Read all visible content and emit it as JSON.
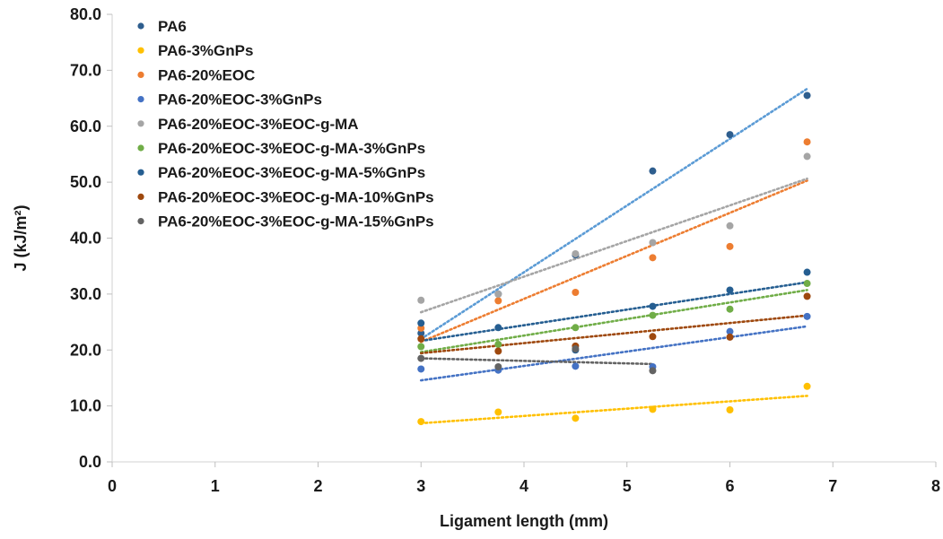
{
  "chart_data": {
    "type": "scatter",
    "xlabel": "Ligament length (mm)",
    "ylabel": "J (kJ/m²)",
    "xlim": [
      0,
      8
    ],
    "ylim": [
      0,
      80
    ],
    "x_ticks": [
      "0",
      "1",
      "2",
      "3",
      "4",
      "5",
      "6",
      "7",
      "8"
    ],
    "y_ticks": [
      "0.0",
      "10.0",
      "20.0",
      "30.0",
      "40.0",
      "50.0",
      "60.0",
      "70.0",
      "80.0"
    ],
    "grid": false,
    "legend_position": "top-left",
    "trendlines": "linear, dotted",
    "series": [
      {
        "name": "PA6",
        "color": "#2E5E8E",
        "trend_color": "#5B9BD5",
        "x": [
          3,
          3.75,
          4.5,
          5.25,
          6,
          6.75
        ],
        "y": [
          23.0,
          30.0,
          37.0,
          52.0,
          58.5,
          65.5
        ]
      },
      {
        "name": "PA6-3%GnPs",
        "color": "#FFC000",
        "trend_color": "#FFC000",
        "x": [
          3,
          3.75,
          4.5,
          5.25,
          6,
          6.75
        ],
        "y": [
          7.2,
          8.9,
          7.8,
          9.4,
          9.3,
          13.5
        ]
      },
      {
        "name": "PA6-20%EOC",
        "color": "#ED7D31",
        "trend_color": "#ED7D31",
        "x": [
          3,
          3.75,
          4.5,
          5.25,
          6,
          6.75
        ],
        "y": [
          23.9,
          28.8,
          30.3,
          36.5,
          38.5,
          57.2
        ]
      },
      {
        "name": "PA6-20%EOC-3%GnPs",
        "color": "#4472C4",
        "trend_color": "#4472C4",
        "x": [
          3,
          3.75,
          4.5,
          5.25,
          6,
          6.75
        ],
        "y": [
          16.6,
          16.4,
          17.1,
          17.0,
          23.3,
          26.0
        ]
      },
      {
        "name": "PA6-20%EOC-3%EOC-g-MA",
        "color": "#A5A5A5",
        "trend_color": "#A5A5A5",
        "x": [
          3,
          3.75,
          4.5,
          5.25,
          6,
          6.75
        ],
        "y": [
          28.9,
          30.0,
          37.2,
          39.2,
          42.2,
          54.6
        ]
      },
      {
        "name": "PA6-20%EOC-3%EOC-g-MA-3%GnPs",
        "color": "#70AD47",
        "trend_color": "#70AD47",
        "x": [
          3,
          3.75,
          4.5,
          5.25,
          6,
          6.75
        ],
        "y": [
          20.6,
          21.0,
          24.0,
          26.2,
          27.3,
          31.9
        ]
      },
      {
        "name": "PA6-20%EOC-3%EOC-g-MA-5%GnPs",
        "color": "#255E91",
        "trend_color": "#255E91",
        "x": [
          3,
          3.75,
          4.5,
          5.25,
          6,
          6.75
        ],
        "y": [
          24.8,
          24.0,
          20.0,
          27.8,
          30.7,
          33.9
        ]
      },
      {
        "name": "PA6-20%EOC-3%EOC-g-MA-10%GnPs",
        "color": "#9E480E",
        "trend_color": "#9E480E",
        "x": [
          3,
          3.75,
          4.5,
          5.25,
          6,
          6.75
        ],
        "y": [
          22.0,
          19.8,
          20.7,
          22.4,
          22.3,
          29.6
        ]
      },
      {
        "name": "PA6-20%EOC-3%EOC-g-MA-15%GnPs",
        "color": "#636363",
        "trend_color": "#636363",
        "x": [
          3,
          3.75,
          4.5,
          5.25
        ],
        "y": [
          18.5,
          17.0,
          20.2,
          16.3
        ]
      }
    ]
  }
}
